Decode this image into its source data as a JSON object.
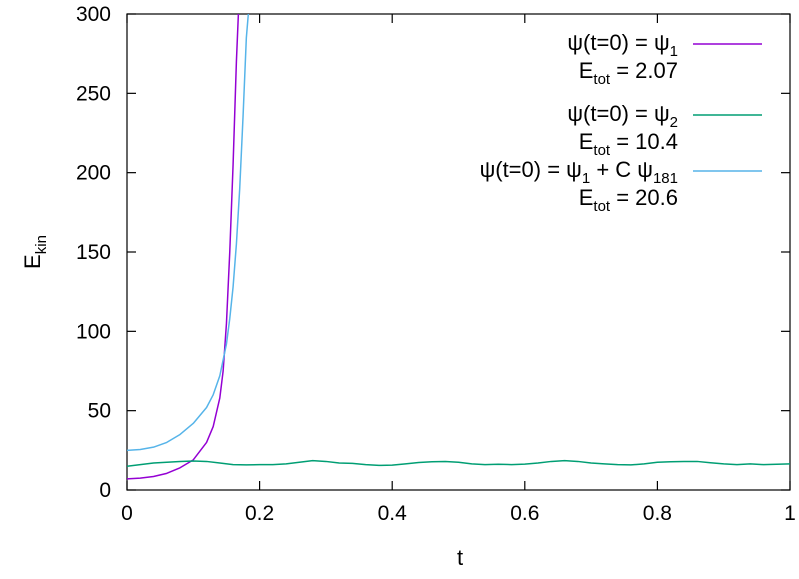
{
  "chart_data": {
    "type": "line",
    "title": "",
    "xlabel": "t",
    "ylabel": {
      "main": "E",
      "sub": "kin"
    },
    "xlim": [
      0,
      1
    ],
    "ylim": [
      0,
      300
    ],
    "xticks": [
      "0",
      "0.2",
      "0.4",
      "0.6",
      "0.8",
      "1"
    ],
    "xtick_values": [
      0,
      0.2,
      0.4,
      0.6,
      0.8,
      1
    ],
    "yticks": [
      "0",
      "50",
      "100",
      "150",
      "200",
      "250",
      "300"
    ],
    "ytick_values": [
      0,
      50,
      100,
      150,
      200,
      250,
      300
    ],
    "grid": false,
    "legend_position": "top-right",
    "series": [
      {
        "color": "#9400d3",
        "legend": {
          "line1": {
            "main": "ψ(t=0) = ψ",
            "sub": "1",
            "tail": ""
          },
          "line2": {
            "main": "E",
            "sub": "tot",
            "tail": " = 2.07"
          }
        },
        "x": [
          0,
          0.02,
          0.04,
          0.06,
          0.08,
          0.1,
          0.12,
          0.13,
          0.14,
          0.145,
          0.15,
          0.155,
          0.16,
          0.165,
          0.168
        ],
        "y": [
          7,
          7.5,
          8.5,
          10.5,
          14,
          19,
          30,
          40,
          58,
          75,
          105,
          150,
          205,
          270,
          300
        ]
      },
      {
        "color": "#009e73",
        "legend": {
          "line1": {
            "main": "ψ(t=0) = ψ",
            "sub": "2",
            "tail": ""
          },
          "line2": {
            "main": "E",
            "sub": "tot",
            "tail": " = 10.4"
          }
        },
        "x": [
          0,
          0.02,
          0.04,
          0.06,
          0.08,
          0.1,
          0.12,
          0.14,
          0.16,
          0.18,
          0.2,
          0.22,
          0.24,
          0.26,
          0.28,
          0.3,
          0.32,
          0.34,
          0.36,
          0.38,
          0.4,
          0.42,
          0.44,
          0.46,
          0.48,
          0.5,
          0.52,
          0.54,
          0.56,
          0.58,
          0.6,
          0.62,
          0.64,
          0.66,
          0.68,
          0.7,
          0.72,
          0.74,
          0.76,
          0.78,
          0.8,
          0.82,
          0.84,
          0.86,
          0.88,
          0.9,
          0.92,
          0.94,
          0.96,
          0.98,
          1.0
        ],
        "y": [
          15,
          16,
          17,
          17.5,
          18,
          18.3,
          18,
          17,
          16,
          15.8,
          16,
          16,
          16.5,
          17.5,
          18.5,
          18,
          17,
          16.8,
          16,
          15.5,
          15.7,
          16.5,
          17.3,
          17.8,
          18,
          17.5,
          16.5,
          16,
          16.2,
          16,
          16.3,
          17,
          18,
          18.5,
          18,
          17,
          16.5,
          16,
          15.8,
          16.5,
          17.5,
          17.8,
          18,
          18,
          17.2,
          16.5,
          16,
          16.5,
          16,
          16.2,
          16.5
        ]
      },
      {
        "color": "#56b4e9",
        "legend": {
          "line1": {
            "main": "ψ(t=0) = ψ",
            "sub": "1",
            "tail": " + C ψ",
            "sub2": "181"
          },
          "line2": {
            "main": "E",
            "sub": "tot",
            "tail": " = 20.6"
          }
        },
        "x": [
          0,
          0.02,
          0.04,
          0.06,
          0.08,
          0.1,
          0.12,
          0.13,
          0.14,
          0.15,
          0.155,
          0.16,
          0.165,
          0.17,
          0.175,
          0.18,
          0.183
        ],
        "y": [
          25,
          25.5,
          27,
          30,
          35,
          42,
          52,
          60,
          72,
          92,
          108,
          128,
          155,
          190,
          235,
          285,
          300
        ]
      }
    ]
  }
}
